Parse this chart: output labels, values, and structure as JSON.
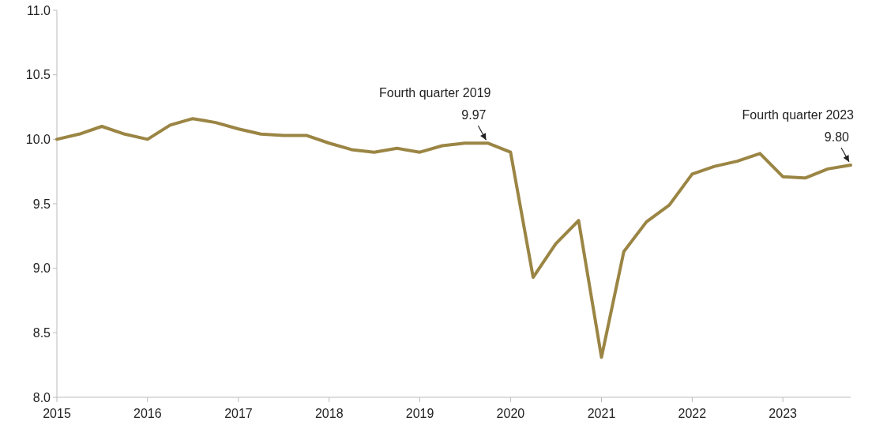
{
  "chart_data": {
    "type": "line",
    "x": [
      "2015-01",
      "2015-04",
      "2015-07",
      "2015-10",
      "2016-01",
      "2016-04",
      "2016-07",
      "2016-10",
      "2017-01",
      "2017-04",
      "2017-07",
      "2017-10",
      "2018-01",
      "2018-04",
      "2018-07",
      "2018-10",
      "2019-01",
      "2019-04",
      "2019-07",
      "2019-10",
      "2020-01",
      "2020-04",
      "2020-07",
      "2020-10",
      "2021-01",
      "2021-04",
      "2021-07",
      "2021-10",
      "2022-01",
      "2022-04",
      "2022-07",
      "2022-10",
      "2023-01",
      "2023-04",
      "2023-07",
      "2023-10"
    ],
    "series": [
      {
        "color": "#9b8544",
        "values": [
          10.0,
          10.04,
          10.1,
          10.04,
          10.0,
          10.11,
          10.16,
          10.13,
          10.08,
          10.04,
          10.03,
          10.03,
          9.97,
          9.92,
          9.9,
          9.93,
          9.9,
          9.95,
          9.97,
          9.97,
          9.9,
          8.93,
          9.19,
          9.37,
          8.31,
          9.13,
          9.36,
          9.49,
          9.73,
          9.79,
          9.83,
          9.89,
          9.71,
          9.7,
          9.77,
          9.8
        ]
      }
    ],
    "xlim": [
      "2015-01",
      "2023-10"
    ],
    "xticks": [
      "2015",
      "2016",
      "2017",
      "2018",
      "2019",
      "2020",
      "2021",
      "2022",
      "2023"
    ],
    "ylim": [
      8.0,
      11.0
    ],
    "yticks": [
      {
        "value": 8,
        "label": "8.0"
      },
      {
        "value": 8.5,
        "label": "8.5"
      },
      {
        "value": 9,
        "label": "9.0"
      },
      {
        "value": 9.5,
        "label": "9.5"
      },
      {
        "value": 10,
        "label": "10.0"
      },
      {
        "value": 10.5,
        "label": "10.5"
      },
      {
        "value": 11,
        "label": "11.0"
      }
    ],
    "grid": false,
    "line_style": "solid",
    "marker": "none",
    "annotations": [
      {
        "text": "Fourth quarter 2019\n9.97",
        "x": "2019-10",
        "y": 9.97
      },
      {
        "text": "Fourth quarter 2023\n9.80",
        "x": "2023-10",
        "y": 9.8
      }
    ]
  }
}
